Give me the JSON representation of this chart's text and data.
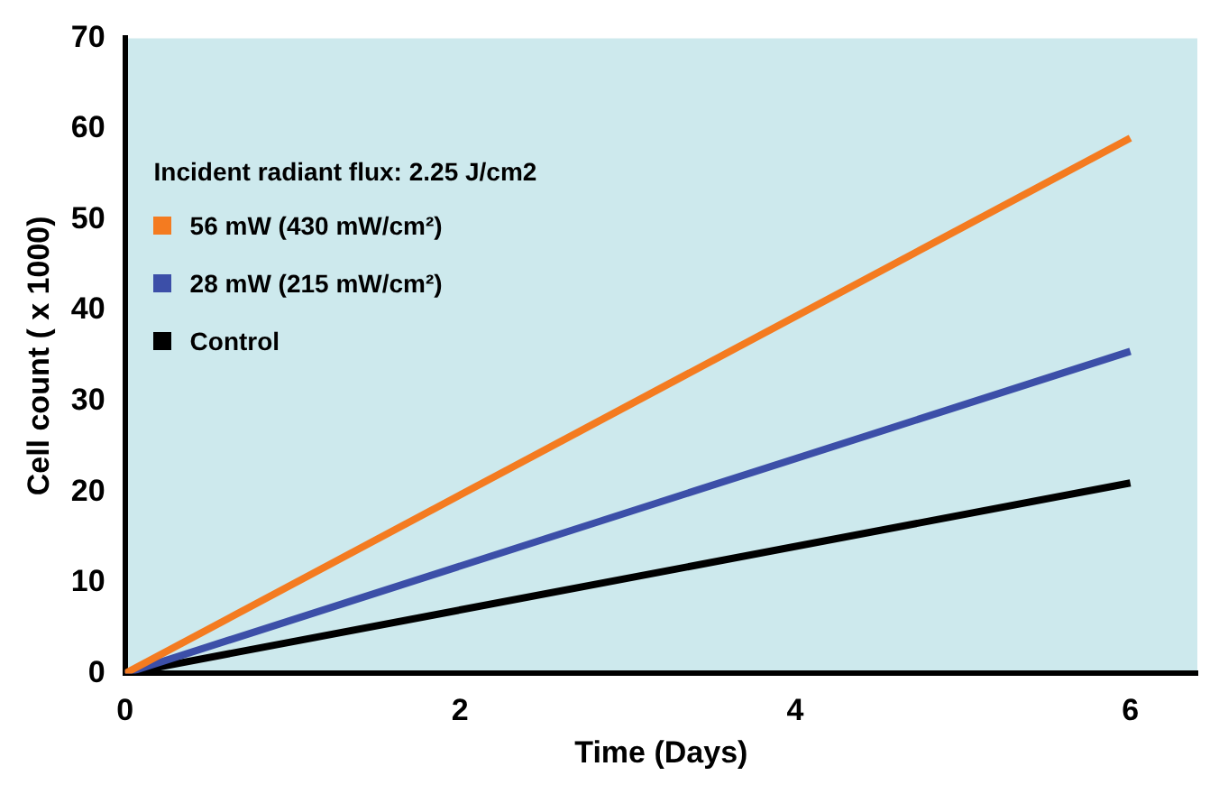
{
  "chart_data": {
    "type": "line",
    "xlabel": "Time (Days)",
    "ylabel": "Cell count ( x 1000)",
    "legend_title": "Incident radiant flux: 2.25 J/cm2",
    "legend": "top left",
    "marker": "none",
    "line_style": "solid",
    "grid": false,
    "x": [
      0,
      6
    ],
    "xlim": [
      0,
      6.4
    ],
    "xticks": [
      0,
      2,
      4,
      6
    ],
    "ylim": [
      0,
      70
    ],
    "yticks": [
      0,
      10,
      20,
      30,
      40,
      50,
      60,
      70
    ],
    "series": [
      {
        "name": "56 mW (430 mW/cm²)",
        "color": "#f47b20",
        "values": [
          0,
          59
        ]
      },
      {
        "name": "28 mW (215 mW/cm²)",
        "color": "#3c4fa8",
        "values": [
          0,
          35.5
        ]
      },
      {
        "name": "Control",
        "color": "#000000",
        "values": [
          0,
          21
        ]
      }
    ]
  }
}
